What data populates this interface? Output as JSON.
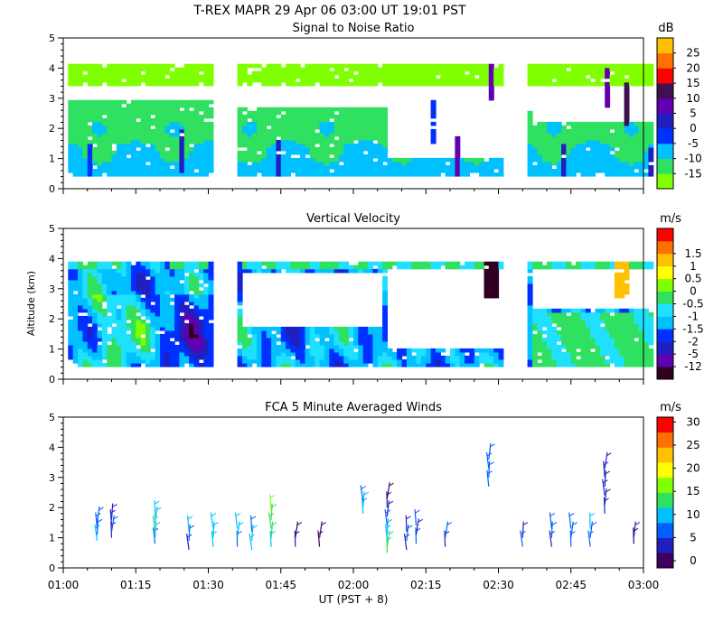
{
  "header": {
    "title": "T-REX   MAPR 29 Apr 06   03:00 UT   19:01   PST"
  },
  "x_axis": {
    "label": "UT  (PST + 8)",
    "ticks": [
      "01:00",
      "01:15",
      "01:30",
      "01:45",
      "02:00",
      "02:15",
      "02:30",
      "02:45",
      "03:00"
    ],
    "range_minutes": [
      60,
      180
    ]
  },
  "colors": {
    "snr": [
      "#80ff00",
      "#30e060",
      "#00c0ff",
      "#0030ff",
      "#2020c0",
      "#6000b0",
      "#401050",
      "#ff0000",
      "#ff7000",
      "#ffc000"
    ],
    "velocity": [
      "#300020",
      "#6000b0",
      "#2020c0",
      "#0030ff",
      "#00c0ff",
      "#20e0ff",
      "#30e060",
      "#80ff00",
      "#ffff00",
      "#ffc000",
      "#ff7000",
      "#ff0000"
    ],
    "winds": [
      "#400060",
      "#2020c0",
      "#0060ff",
      "#00c0ff",
      "#30e060",
      "#80ff00",
      "#ffff00",
      "#ffc000",
      "#ff7000",
      "#ff0000"
    ]
  },
  "chart_data": [
    {
      "type": "heatmap",
      "title": "Signal to Noise Ratio",
      "ylabel": "",
      "ylim": [
        0,
        5
      ],
      "yticks": [
        "0",
        "1",
        "2",
        "3",
        "4",
        "5"
      ],
      "colorbar_unit": "dB",
      "colorbar_ticks": [
        "-15",
        "-10",
        "-5",
        "0",
        "5",
        "10",
        "15",
        "20",
        "25"
      ],
      "data_blocks_minutes": [
        [
          61,
          91
        ],
        [
          96,
          126
        ],
        [
          126,
          151
        ],
        [
          156,
          182
        ]
      ],
      "data_altitude_range_km": [
        0.35,
        4.1
      ]
    },
    {
      "type": "heatmap",
      "title": "Vertical Velocity",
      "ylabel": "Altitude (km)",
      "ylim": [
        0,
        5
      ],
      "yticks": [
        "0",
        "1",
        "2",
        "3",
        "4",
        "5"
      ],
      "colorbar_unit": "m/s",
      "colorbar_ticks": [
        "-12",
        "-5",
        "-2",
        "-1.5",
        "-1",
        "-0.5",
        "0",
        "0.5",
        "1",
        "1.5"
      ],
      "data_blocks_minutes": [
        [
          61,
          91
        ],
        [
          96,
          126
        ],
        [
          126,
          151
        ],
        [
          156,
          182
        ]
      ],
      "data_altitude_range_km": [
        0.35,
        4.1
      ]
    },
    {
      "type": "scatter",
      "title": "FCA 5 Minute Averaged Winds",
      "ylabel": "",
      "ylim": [
        0,
        5
      ],
      "yticks": [
        "0",
        "1",
        "2",
        "3",
        "4",
        "5"
      ],
      "colorbar_unit": "m/s",
      "colorbar_ticks": [
        "0",
        "5",
        "10",
        "15",
        "20",
        "25",
        "30"
      ],
      "profiles": [
        {
          "t": 67,
          "z": [
            0.9,
            1.1,
            1.3,
            1.5
          ],
          "speed": [
            9,
            8,
            7,
            6
          ]
        },
        {
          "t": 70,
          "z": [
            1.0,
            1.2,
            1.4,
            1.6
          ],
          "speed": [
            5,
            6,
            4,
            5
          ]
        },
        {
          "t": 79,
          "z": [
            0.8,
            1.0,
            1.2,
            1.5,
            1.7
          ],
          "speed": [
            6,
            10,
            12,
            10,
            9
          ]
        },
        {
          "t": 86,
          "z": [
            0.6,
            0.9,
            1.2
          ],
          "speed": [
            5,
            7,
            9
          ]
        },
        {
          "t": 91,
          "z": [
            0.7,
            1.0,
            1.3
          ],
          "speed": [
            9,
            11,
            10
          ]
        },
        {
          "t": 96,
          "z": [
            0.7,
            1.0,
            1.3
          ],
          "speed": [
            8,
            10,
            9
          ]
        },
        {
          "t": 99,
          "z": [
            0.6,
            0.9,
            1.2
          ],
          "speed": [
            9,
            10,
            8
          ]
        },
        {
          "t": 103,
          "z": [
            0.7,
            1.0,
            1.3,
            1.6,
            1.9
          ],
          "speed": [
            10,
            12,
            14,
            13,
            15
          ]
        },
        {
          "t": 108,
          "z": [
            0.7,
            1.0
          ],
          "speed": [
            3,
            2
          ]
        },
        {
          "t": 113,
          "z": [
            0.7,
            1.0
          ],
          "speed": [
            1,
            2
          ]
        },
        {
          "t": 122,
          "z": [
            1.8,
            2.0,
            2.2
          ],
          "speed": [
            9,
            10,
            8
          ]
        },
        {
          "t": 127,
          "z": [
            0.5,
            0.7,
            0.9,
            1.1,
            1.4,
            1.7,
            2.0,
            2.3
          ],
          "speed": [
            14,
            12,
            11,
            9,
            7,
            5,
            3,
            2
          ]
        },
        {
          "t": 131,
          "z": [
            0.6,
            0.9,
            1.2
          ],
          "speed": [
            4,
            6,
            5
          ]
        },
        {
          "t": 133,
          "z": [
            0.8,
            1.1,
            1.4
          ],
          "speed": [
            6,
            5,
            6
          ]
        },
        {
          "t": 148,
          "z": [
            2.7,
            3.0,
            3.3,
            3.6
          ],
          "speed": [
            8,
            7,
            6,
            7
          ]
        },
        {
          "t": 139,
          "z": [
            0.7,
            1.0
          ],
          "speed": [
            5,
            6
          ]
        },
        {
          "t": 155,
          "z": [
            0.7,
            1.0
          ],
          "speed": [
            6,
            5
          ]
        },
        {
          "t": 161,
          "z": [
            0.7,
            1.0,
            1.3
          ],
          "speed": [
            5,
            6,
            7
          ]
        },
        {
          "t": 165,
          "z": [
            0.7,
            1.0,
            1.3
          ],
          "speed": [
            7,
            8,
            6
          ]
        },
        {
          "t": 172,
          "z": [
            1.8,
            2.1,
            2.4,
            2.7,
            3.0,
            3.3
          ],
          "speed": [
            3,
            4,
            4,
            5,
            5,
            4
          ]
        },
        {
          "t": 169,
          "z": [
            0.7,
            1.0,
            1.3
          ],
          "speed": [
            7,
            8,
            9
          ]
        },
        {
          "t": 178,
          "z": [
            0.8,
            1.0
          ],
          "speed": [
            2,
            3
          ]
        }
      ]
    }
  ]
}
